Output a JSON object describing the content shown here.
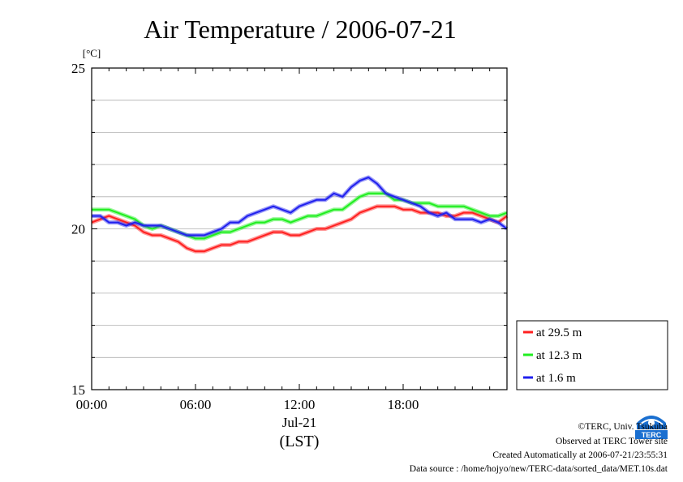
{
  "chart_data": {
    "type": "line",
    "title": "Air Temperature / 2006-07-21",
    "ylabel": "[°C]",
    "xlabel": "(LST)",
    "date_label": "Jul-21",
    "x_ticks": [
      "00:00",
      "06:00",
      "12:00",
      "18:00"
    ],
    "y_ticks": [
      "15",
      "20",
      "25"
    ],
    "xlim": [
      "00:00",
      "24:00"
    ],
    "ylim": [
      15,
      25
    ],
    "grid": true,
    "legend_position": "bottom-right outside",
    "series": [
      {
        "name": "at 29.5 m",
        "color": "#ff2020",
        "points": [
          [
            "00:00",
            20.2
          ],
          [
            "00:30",
            20.3
          ],
          [
            "01:00",
            20.4
          ],
          [
            "01:30",
            20.3
          ],
          [
            "02:00",
            20.2
          ],
          [
            "02:30",
            20.1
          ],
          [
            "03:00",
            19.9
          ],
          [
            "03:30",
            19.8
          ],
          [
            "04:00",
            19.8
          ],
          [
            "04:30",
            19.7
          ],
          [
            "05:00",
            19.6
          ],
          [
            "05:30",
            19.4
          ],
          [
            "06:00",
            19.3
          ],
          [
            "06:30",
            19.3
          ],
          [
            "07:00",
            19.4
          ],
          [
            "07:30",
            19.5
          ],
          [
            "08:00",
            19.5
          ],
          [
            "08:30",
            19.6
          ],
          [
            "09:00",
            19.6
          ],
          [
            "09:30",
            19.7
          ],
          [
            "10:00",
            19.8
          ],
          [
            "10:30",
            19.9
          ],
          [
            "11:00",
            19.9
          ],
          [
            "11:30",
            19.8
          ],
          [
            "12:00",
            19.8
          ],
          [
            "12:30",
            19.9
          ],
          [
            "13:00",
            20.0
          ],
          [
            "13:30",
            20.0
          ],
          [
            "14:00",
            20.1
          ],
          [
            "14:30",
            20.2
          ],
          [
            "15:00",
            20.3
          ],
          [
            "15:30",
            20.5
          ],
          [
            "16:00",
            20.6
          ],
          [
            "16:30",
            20.7
          ],
          [
            "17:00",
            20.7
          ],
          [
            "17:30",
            20.7
          ],
          [
            "18:00",
            20.6
          ],
          [
            "18:30",
            20.6
          ],
          [
            "19:00",
            20.5
          ],
          [
            "19:30",
            20.5
          ],
          [
            "20:00",
            20.5
          ],
          [
            "20:30",
            20.4
          ],
          [
            "21:00",
            20.4
          ],
          [
            "21:30",
            20.5
          ],
          [
            "22:00",
            20.5
          ],
          [
            "22:30",
            20.4
          ],
          [
            "23:00",
            20.3
          ],
          [
            "23:30",
            20.2
          ],
          [
            "24:00",
            20.4
          ]
        ]
      },
      {
        "name": "at 12.3 m",
        "color": "#20ee20",
        "points": [
          [
            "00:00",
            20.6
          ],
          [
            "00:30",
            20.6
          ],
          [
            "01:00",
            20.6
          ],
          [
            "01:30",
            20.5
          ],
          [
            "02:00",
            20.4
          ],
          [
            "02:30",
            20.3
          ],
          [
            "03:00",
            20.1
          ],
          [
            "03:30",
            20.0
          ],
          [
            "04:00",
            20.1
          ],
          [
            "04:30",
            20.0
          ],
          [
            "05:00",
            19.9
          ],
          [
            "05:30",
            19.8
          ],
          [
            "06:00",
            19.7
          ],
          [
            "06:30",
            19.7
          ],
          [
            "07:00",
            19.8
          ],
          [
            "07:30",
            19.9
          ],
          [
            "08:00",
            19.9
          ],
          [
            "08:30",
            20.0
          ],
          [
            "09:00",
            20.1
          ],
          [
            "09:30",
            20.2
          ],
          [
            "10:00",
            20.2
          ],
          [
            "10:30",
            20.3
          ],
          [
            "11:00",
            20.3
          ],
          [
            "11:30",
            20.2
          ],
          [
            "12:00",
            20.3
          ],
          [
            "12:30",
            20.4
          ],
          [
            "13:00",
            20.4
          ],
          [
            "13:30",
            20.5
          ],
          [
            "14:00",
            20.6
          ],
          [
            "14:30",
            20.6
          ],
          [
            "15:00",
            20.8
          ],
          [
            "15:30",
            21.0
          ],
          [
            "16:00",
            21.1
          ],
          [
            "16:30",
            21.1
          ],
          [
            "17:00",
            21.1
          ],
          [
            "17:30",
            20.9
          ],
          [
            "18:00",
            20.9
          ],
          [
            "18:30",
            20.8
          ],
          [
            "19:00",
            20.8
          ],
          [
            "19:30",
            20.8
          ],
          [
            "20:00",
            20.7
          ],
          [
            "20:30",
            20.7
          ],
          [
            "21:00",
            20.7
          ],
          [
            "21:30",
            20.7
          ],
          [
            "22:00",
            20.6
          ],
          [
            "22:30",
            20.5
          ],
          [
            "23:00",
            20.4
          ],
          [
            "23:30",
            20.4
          ],
          [
            "24:00",
            20.5
          ]
        ]
      },
      {
        "name": "at 1.6 m",
        "color": "#2020ee",
        "points": [
          [
            "00:00",
            20.4
          ],
          [
            "00:30",
            20.4
          ],
          [
            "01:00",
            20.2
          ],
          [
            "01:30",
            20.2
          ],
          [
            "02:00",
            20.1
          ],
          [
            "02:30",
            20.2
          ],
          [
            "03:00",
            20.1
          ],
          [
            "03:30",
            20.1
          ],
          [
            "04:00",
            20.1
          ],
          [
            "04:30",
            20.0
          ],
          [
            "05:00",
            19.9
          ],
          [
            "05:30",
            19.8
          ],
          [
            "06:00",
            19.8
          ],
          [
            "06:30",
            19.8
          ],
          [
            "07:00",
            19.9
          ],
          [
            "07:30",
            20.0
          ],
          [
            "08:00",
            20.2
          ],
          [
            "08:30",
            20.2
          ],
          [
            "09:00",
            20.4
          ],
          [
            "09:30",
            20.5
          ],
          [
            "10:00",
            20.6
          ],
          [
            "10:30",
            20.7
          ],
          [
            "11:00",
            20.6
          ],
          [
            "11:30",
            20.5
          ],
          [
            "12:00",
            20.7
          ],
          [
            "12:30",
            20.8
          ],
          [
            "13:00",
            20.9
          ],
          [
            "13:30",
            20.9
          ],
          [
            "14:00",
            21.1
          ],
          [
            "14:30",
            21.0
          ],
          [
            "15:00",
            21.3
          ],
          [
            "15:30",
            21.5
          ],
          [
            "16:00",
            21.6
          ],
          [
            "16:30",
            21.4
          ],
          [
            "17:00",
            21.1
          ],
          [
            "17:30",
            21.0
          ],
          [
            "18:00",
            20.9
          ],
          [
            "18:30",
            20.8
          ],
          [
            "19:00",
            20.7
          ],
          [
            "19:30",
            20.5
          ],
          [
            "20:00",
            20.4
          ],
          [
            "20:30",
            20.5
          ],
          [
            "21:00",
            20.3
          ],
          [
            "21:30",
            20.3
          ],
          [
            "22:00",
            20.3
          ],
          [
            "22:30",
            20.2
          ],
          [
            "23:00",
            20.3
          ],
          [
            "23:30",
            20.2
          ],
          [
            "24:00",
            20.0
          ]
        ]
      }
    ]
  },
  "credits": {
    "copyright": "©TERC, Univ. Tsukuba",
    "observed": "Observed at TERC Tower site",
    "created": "Created Automatically at 2006-07-21/23:55:31",
    "source": "Data source : /home/hojyo/new/TERC-data/sorted_data/MET.10s.dat"
  },
  "logo": {
    "icon": "terc-logo-icon",
    "text": "TERC",
    "color": "#1a6fd0"
  }
}
